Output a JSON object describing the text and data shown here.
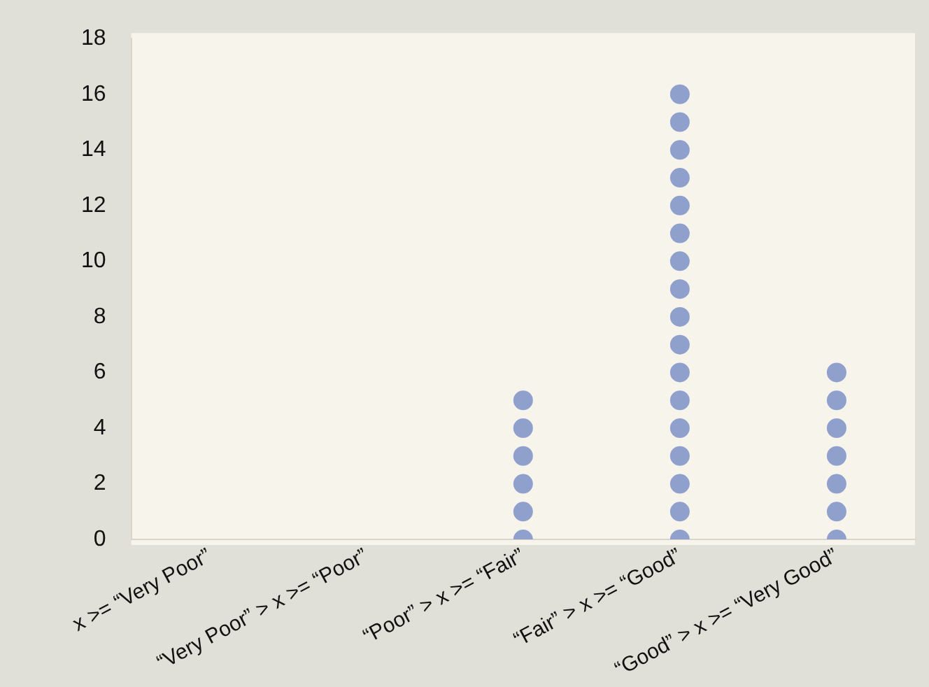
{
  "chart_data": {
    "type": "scatter",
    "categories": [
      "x >= “Very Poor”",
      "“Very Poor” > x >= “Poor”",
      "“Poor” > x >= “Fair”",
      "“Fair” > x >= “Good”",
      "“Good” > x >= “Very Good”"
    ],
    "series": [
      {
        "color": "#8fa0cc",
        "x": [
          "“Poor” > x >= “Fair”",
          "“Poor” > x >= “Fair”",
          "“Poor” > x >= “Fair”",
          "“Poor” > x >= “Fair”",
          "“Poor” > x >= “Fair”",
          "“Poor” > x >= “Fair”",
          "“Fair” > x >= “Good”",
          "“Fair” > x >= “Good”",
          "“Fair” > x >= “Good”",
          "“Fair” > x >= “Good”",
          "“Fair” > x >= “Good”",
          "“Fair” > x >= “Good”",
          "“Fair” > x >= “Good”",
          "“Fair” > x >= “Good”",
          "“Fair” > x >= “Good”",
          "“Fair” > x >= “Good”",
          "“Fair” > x >= “Good”",
          "“Fair” > x >= “Good”",
          "“Fair” > x >= “Good”",
          "“Fair” > x >= “Good”",
          "“Fair” > x >= “Good”",
          "“Fair” > x >= “Good”",
          "“Fair” > x >= “Good”",
          "“Good” > x >= “Very Good”",
          "“Good” > x >= “Very Good”",
          "“Good” > x >= “Very Good”",
          "“Good” > x >= “Very Good”",
          "“Good” > x >= “Very Good”",
          "“Good” > x >= “Very Good”",
          "“Good” > x >= “Very Good”"
        ],
        "values": [
          0,
          1,
          2,
          3,
          4,
          5,
          0,
          1,
          2,
          3,
          4,
          5,
          6,
          7,
          8,
          9,
          10,
          11,
          12,
          13,
          14,
          15,
          16,
          0,
          1,
          2,
          3,
          4,
          5,
          6
        ]
      }
    ],
    "ylim": [
      0,
      18
    ],
    "yticks": [
      0,
      2,
      4,
      6,
      8,
      10,
      12,
      14,
      16,
      18
    ],
    "grid": false,
    "legend": false,
    "marker": "circle"
  }
}
